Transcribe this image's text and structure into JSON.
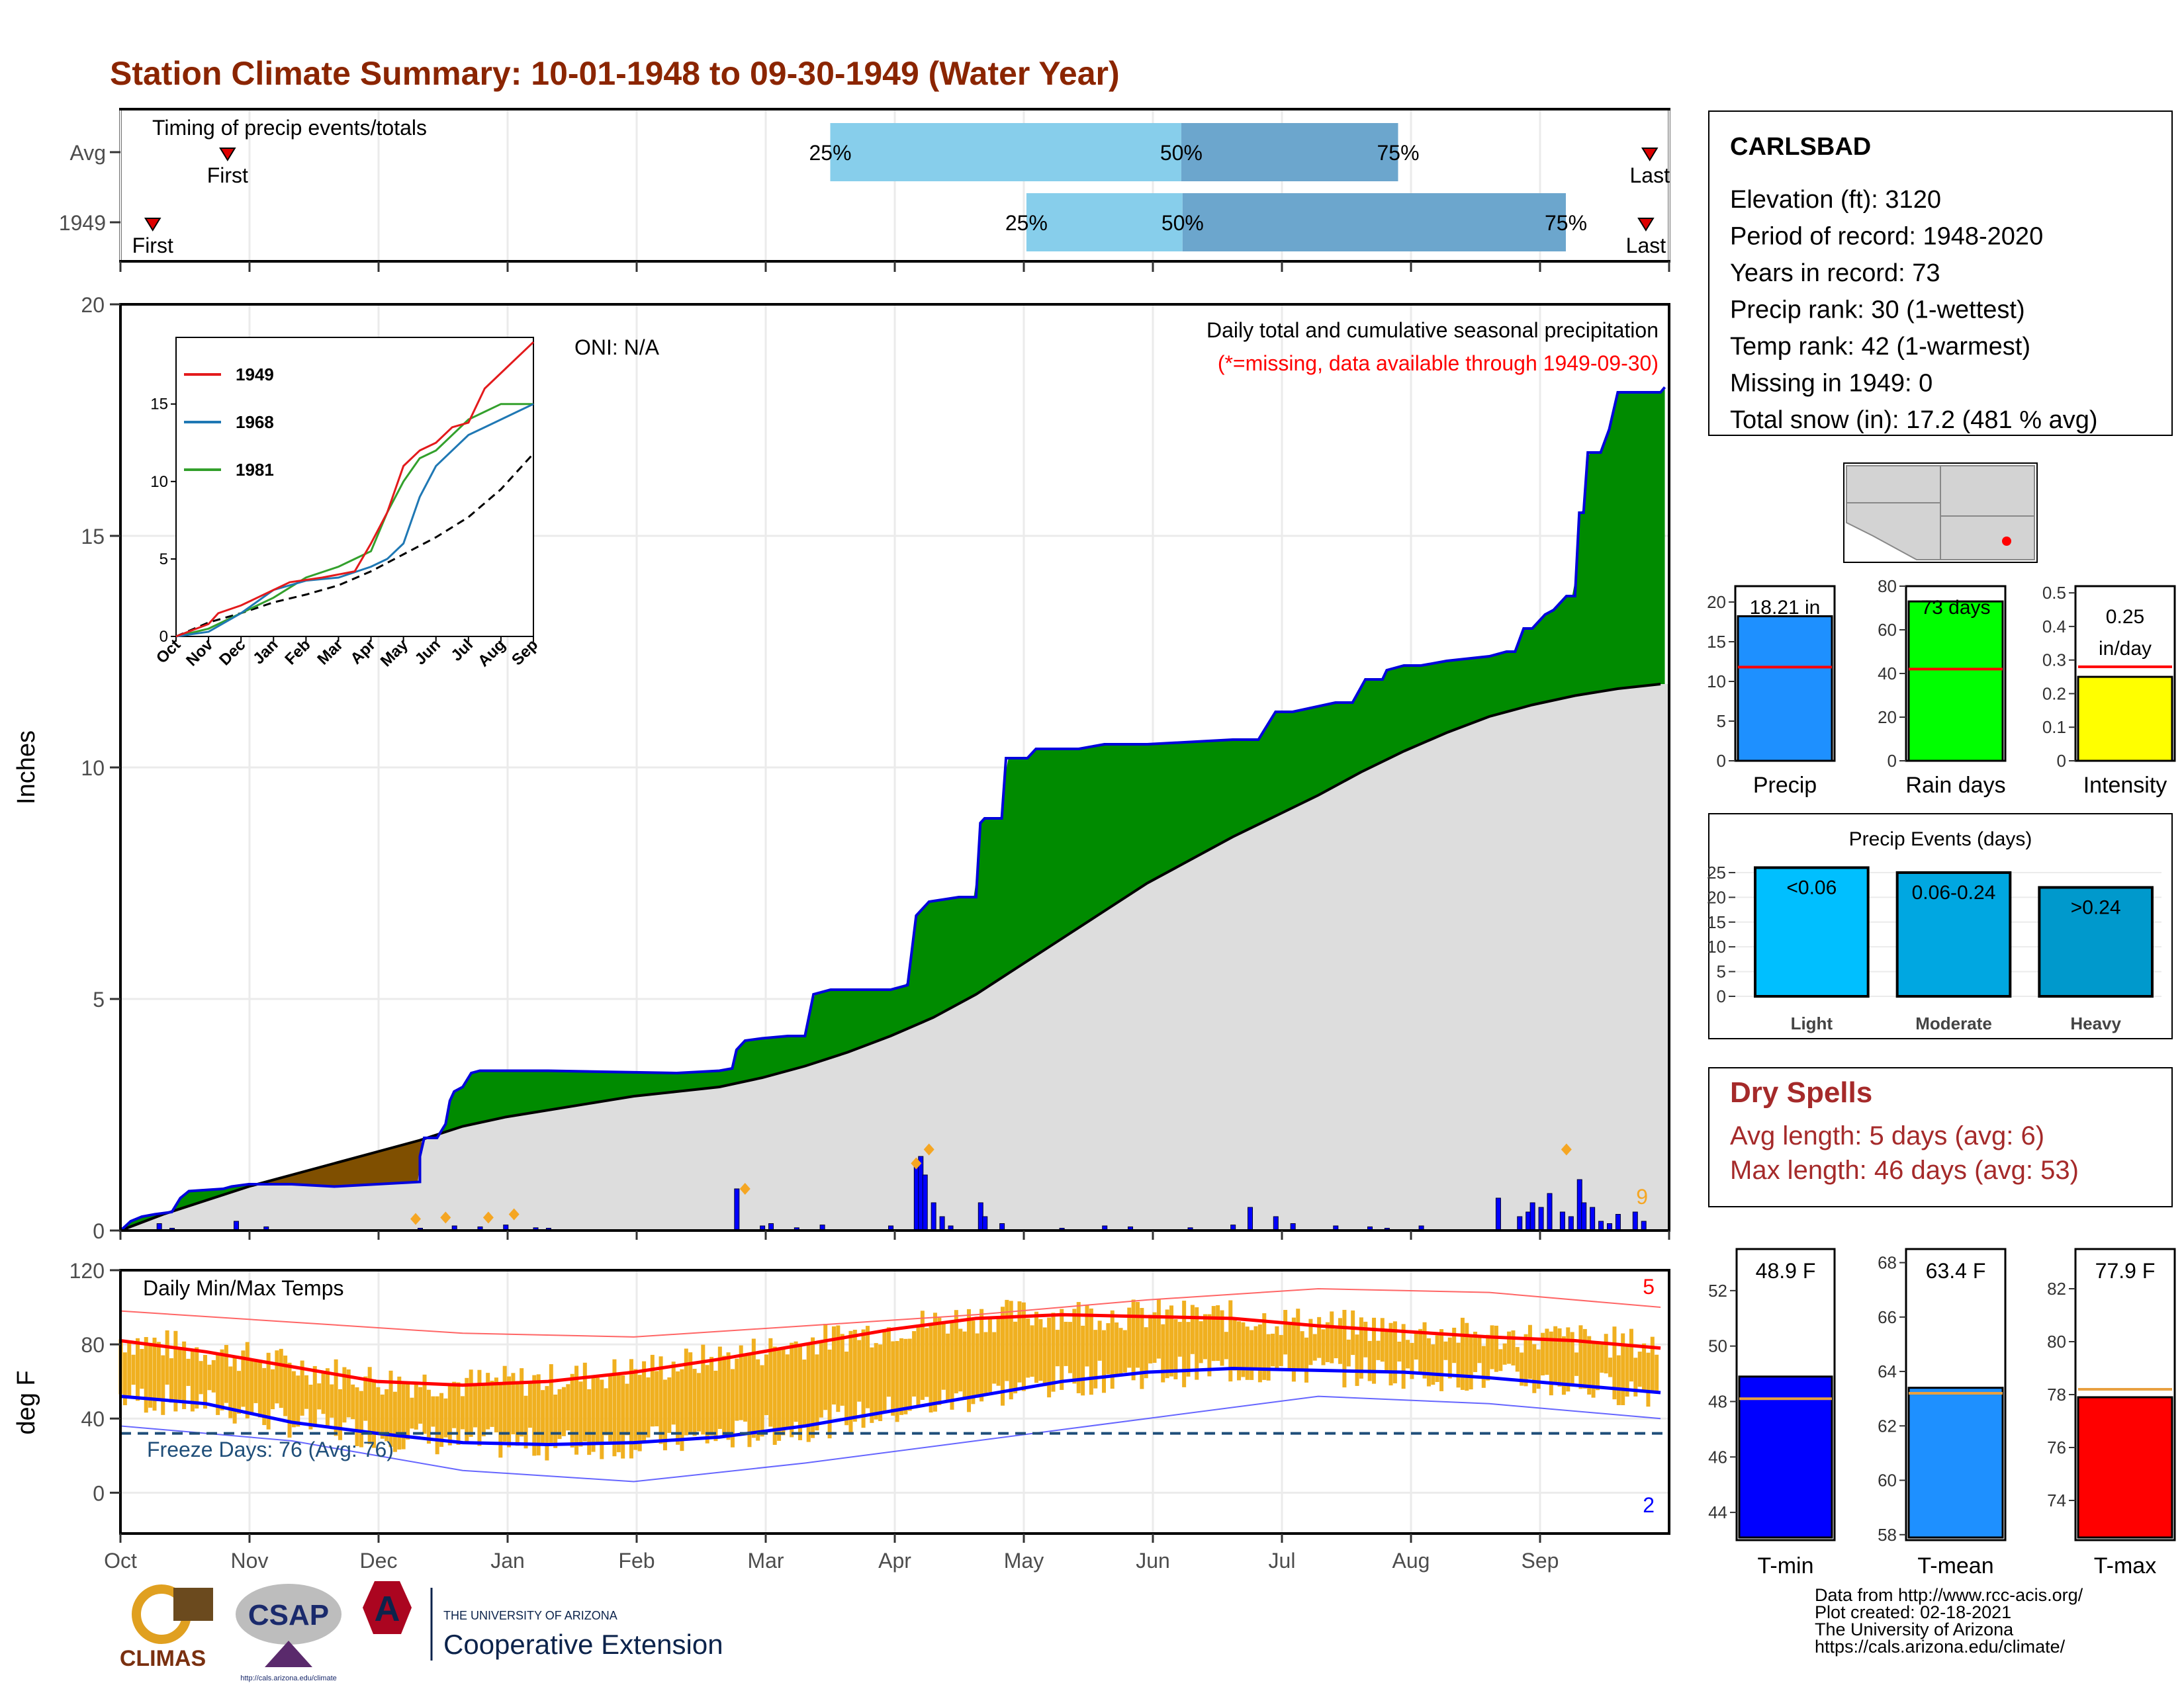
{
  "title": "Station Climate Summary: 10-01-1948 to 09-30-1949 (Water Year)",
  "colors": {
    "title": "#8b2500",
    "dry_title": "#a52a2a",
    "brown": "#7f4f00",
    "green": "#008b00",
    "cum_gray": "#dddddd",
    "blue_line": "#0000dd",
    "orange": "#f5a623",
    "tmin": "#0000ff",
    "tmean": "#1e90ff",
    "tmax": "#ff0000",
    "light_blue": "#87ceeb",
    "mid_blue": "#6ca6cd"
  },
  "timing": {
    "label": "Timing of precip events/totals",
    "rows": [
      {
        "label": "Avg",
        "first_month": 0.83,
        "last_month": 11.85,
        "p25": 5.5,
        "p50": 8.22,
        "p75": 9.9
      },
      {
        "label": "1949",
        "first_month": 0.25,
        "last_month": 11.82,
        "p25": 7.02,
        "p50": 8.23,
        "p75": 11.2
      }
    ],
    "first_label": "First",
    "last_label": "Last",
    "p25_label": "25%",
    "p50_label": "50%",
    "p75_label": "75%"
  },
  "precip_main": {
    "ylabel": "Inches",
    "yticks": [
      0,
      5,
      10,
      15,
      20
    ],
    "annotation_title": "Daily total and cumulative seasonal precipitation",
    "annotation_missing": "(*=missing, data available through 1949-09-30)",
    "oni": "ONI: N/A",
    "corner_count": "9",
    "cumulative_1949": [
      [
        0,
        0
      ],
      [
        0.05,
        0.08
      ],
      [
        0.12,
        0.2
      ],
      [
        0.25,
        0.3
      ],
      [
        0.4,
        0.35
      ],
      [
        0.6,
        0.4
      ],
      [
        0.7,
        0.7
      ],
      [
        0.8,
        0.85
      ],
      [
        1.2,
        0.9
      ],
      [
        1.3,
        0.95
      ],
      [
        1.5,
        1.0
      ],
      [
        2.0,
        1.0
      ],
      [
        2.5,
        0.95
      ],
      [
        3.0,
        1.0
      ],
      [
        3.5,
        1.05
      ],
      [
        3.5,
        1.6
      ],
      [
        3.55,
        2.0
      ],
      [
        3.7,
        2.0
      ],
      [
        3.8,
        2.3
      ],
      [
        3.85,
        2.8
      ],
      [
        3.9,
        3.0
      ],
      [
        4.0,
        3.1
      ],
      [
        4.1,
        3.4
      ],
      [
        4.2,
        3.45
      ],
      [
        5.0,
        3.45
      ],
      [
        6.5,
        3.4
      ],
      [
        7.0,
        3.45
      ],
      [
        7.15,
        3.5
      ],
      [
        7.2,
        3.9
      ],
      [
        7.3,
        4.1
      ],
      [
        7.5,
        4.15
      ],
      [
        7.8,
        4.2
      ],
      [
        8.0,
        4.2
      ],
      [
        8.1,
        5.1
      ],
      [
        8.3,
        5.2
      ],
      [
        9.0,
        5.2
      ],
      [
        9.2,
        5.3
      ],
      [
        9.3,
        6.8
      ],
      [
        9.4,
        7.0
      ],
      [
        9.45,
        7.1
      ],
      [
        9.8,
        7.2
      ],
      [
        10.0,
        7.2
      ],
      [
        10.05,
        8.8
      ],
      [
        10.1,
        8.9
      ],
      [
        10.3,
        8.9
      ],
      [
        10.35,
        10.2
      ],
      [
        10.6,
        10.2
      ],
      [
        10.7,
        10.4
      ],
      [
        11.2,
        10.4
      ],
      [
        11.5,
        10.5
      ],
      [
        12.0,
        10.5
      ],
      [
        13.0,
        10.6
      ],
      [
        13.3,
        10.6
      ],
      [
        13.5,
        11.2
      ],
      [
        13.7,
        11.2
      ],
      [
        14.2,
        11.4
      ],
      [
        14.4,
        11.4
      ],
      [
        14.55,
        11.9
      ],
      [
        14.75,
        11.9
      ],
      [
        14.8,
        12.1
      ],
      [
        15.0,
        12.2
      ],
      [
        15.2,
        12.2
      ],
      [
        15.5,
        12.3
      ],
      [
        16.0,
        12.4
      ],
      [
        16.2,
        12.5
      ],
      [
        16.3,
        12.5
      ],
      [
        16.4,
        13.0
      ],
      [
        16.5,
        13.0
      ],
      [
        16.65,
        13.3
      ],
      [
        16.75,
        13.4
      ],
      [
        16.9,
        13.7
      ],
      [
        17.0,
        13.7
      ],
      [
        17.05,
        15.5
      ],
      [
        17.1,
        15.5
      ],
      [
        17.15,
        16.8
      ],
      [
        17.3,
        16.8
      ],
      [
        17.4,
        17.3
      ],
      [
        17.5,
        18.1
      ],
      [
        18.0,
        18.1
      ],
      [
        18.05,
        18.21
      ]
    ],
    "cumulative_avg_note": "average cumulative curve",
    "cumulative_avg": [
      [
        0,
        0
      ],
      [
        0.5,
        0.35
      ],
      [
        1.0,
        0.65
      ],
      [
        1.5,
        0.95
      ],
      [
        2.0,
        1.2
      ],
      [
        2.5,
        1.45
      ],
      [
        3.0,
        1.7
      ],
      [
        3.5,
        1.95
      ],
      [
        4.0,
        2.25
      ],
      [
        4.5,
        2.45
      ],
      [
        5.0,
        2.6
      ],
      [
        5.5,
        2.75
      ],
      [
        6.0,
        2.9
      ],
      [
        6.5,
        3.0
      ],
      [
        7.0,
        3.1
      ],
      [
        7.5,
        3.3
      ],
      [
        8.0,
        3.55
      ],
      [
        8.5,
        3.85
      ],
      [
        9.0,
        4.2
      ],
      [
        9.5,
        4.6
      ],
      [
        10.0,
        5.1
      ],
      [
        10.5,
        5.7
      ],
      [
        11.0,
        6.3
      ],
      [
        11.5,
        6.9
      ],
      [
        12.0,
        7.5
      ],
      [
        12.5,
        8.0
      ],
      [
        13.0,
        8.5
      ],
      [
        13.5,
        8.95
      ],
      [
        14.0,
        9.4
      ],
      [
        14.5,
        9.9
      ],
      [
        15.0,
        10.35
      ],
      [
        15.5,
        10.75
      ],
      [
        16.0,
        11.1
      ],
      [
        16.5,
        11.35
      ],
      [
        17.0,
        11.55
      ],
      [
        17.5,
        11.7
      ],
      [
        18.0,
        11.8
      ]
    ],
    "daily_bars": [
      [
        0.45,
        0.15
      ],
      [
        0.6,
        0.05
      ],
      [
        1.35,
        0.2
      ],
      [
        1.7,
        0.08
      ],
      [
        3.5,
        0.05
      ],
      [
        3.9,
        0.1
      ],
      [
        4.2,
        0.08
      ],
      [
        4.5,
        0.12
      ],
      [
        4.85,
        0.06
      ],
      [
        5.0,
        0.05
      ],
      [
        7.2,
        0.9
      ],
      [
        7.5,
        0.1
      ],
      [
        7.6,
        0.15
      ],
      [
        7.9,
        0.06
      ],
      [
        8.2,
        0.12
      ],
      [
        9.0,
        0.1
      ],
      [
        9.3,
        1.45
      ],
      [
        9.35,
        1.6
      ],
      [
        9.4,
        1.2
      ],
      [
        9.5,
        0.6
      ],
      [
        9.6,
        0.3
      ],
      [
        9.7,
        0.1
      ],
      [
        10.05,
        0.6
      ],
      [
        10.1,
        0.3
      ],
      [
        10.3,
        0.15
      ],
      [
        11.0,
        0.05
      ],
      [
        11.5,
        0.1
      ],
      [
        11.8,
        0.08
      ],
      [
        12.5,
        0.06
      ],
      [
        13.0,
        0.12
      ],
      [
        13.2,
        0.5
      ],
      [
        13.5,
        0.3
      ],
      [
        13.7,
        0.15
      ],
      [
        14.2,
        0.1
      ],
      [
        14.6,
        0.08
      ],
      [
        14.8,
        0.05
      ],
      [
        15.2,
        0.1
      ],
      [
        16.1,
        0.7
      ],
      [
        16.35,
        0.3
      ],
      [
        16.45,
        0.4
      ],
      [
        16.5,
        0.6
      ],
      [
        16.6,
        0.5
      ],
      [
        16.7,
        0.8
      ],
      [
        16.85,
        0.4
      ],
      [
        16.95,
        0.3
      ],
      [
        17.05,
        1.1
      ],
      [
        17.1,
        0.6
      ],
      [
        17.2,
        0.5
      ],
      [
        17.3,
        0.2
      ],
      [
        17.4,
        0.15
      ],
      [
        17.5,
        0.35
      ],
      [
        17.7,
        0.4
      ],
      [
        17.8,
        0.2
      ]
    ],
    "orange_markers": [
      [
        3.45,
        0.25
      ],
      [
        3.8,
        0.28
      ],
      [
        4.3,
        0.28
      ],
      [
        4.6,
        0.35
      ],
      [
        7.3,
        0.9
      ],
      [
        9.3,
        1.45
      ],
      [
        9.45,
        1.75
      ],
      [
        16.9,
        1.75
      ]
    ],
    "month_ticks": [
      "Oct",
      "Nov",
      "Dec",
      "Jan",
      "Feb",
      "Mar",
      "Apr",
      "May",
      "Jun",
      "Jul",
      "Aug",
      "Sep"
    ]
  },
  "inset": {
    "legend": [
      "1949",
      "1968",
      "1981"
    ],
    "yticks": [
      0,
      5,
      10,
      15
    ],
    "months": [
      "Oct",
      "Nov",
      "Dec",
      "Jan",
      "Feb",
      "Mar",
      "Apr",
      "May",
      "Jun",
      "Jul",
      "Aug",
      "Sep"
    ],
    "series_1949": [
      [
        0,
        0
      ],
      [
        1,
        0.8
      ],
      [
        1.3,
        1.5
      ],
      [
        2,
        2
      ],
      [
        3,
        3
      ],
      [
        3.5,
        3.5
      ],
      [
        4.5,
        3.8
      ],
      [
        5.5,
        4.2
      ],
      [
        6,
        6
      ],
      [
        6.5,
        8
      ],
      [
        7,
        11
      ],
      [
        7.5,
        12
      ],
      [
        8,
        12.5
      ],
      [
        8.5,
        13.5
      ],
      [
        9,
        13.8
      ],
      [
        9.5,
        16
      ],
      [
        10,
        17
      ],
      [
        10.5,
        18
      ],
      [
        11,
        19
      ]
    ],
    "series_1968": [
      [
        0,
        0
      ],
      [
        1,
        0.3
      ],
      [
        2,
        1.5
      ],
      [
        3,
        3
      ],
      [
        4,
        3.6
      ],
      [
        5,
        3.8
      ],
      [
        6,
        4.5
      ],
      [
        6.5,
        5
      ],
      [
        7,
        6
      ],
      [
        7.5,
        9
      ],
      [
        8,
        11
      ],
      [
        8.5,
        12
      ],
      [
        9,
        13
      ],
      [
        9.5,
        13.5
      ],
      [
        10,
        14
      ],
      [
        10.5,
        14.5
      ],
      [
        11,
        15
      ]
    ],
    "series_1981": [
      [
        0,
        0
      ],
      [
        1,
        0.5
      ],
      [
        2,
        1.5
      ],
      [
        3,
        2.5
      ],
      [
        4,
        3.8
      ],
      [
        5,
        4.5
      ],
      [
        5.5,
        5
      ],
      [
        6,
        5.5
      ],
      [
        6.5,
        8
      ],
      [
        7,
        10
      ],
      [
        7.5,
        11.5
      ],
      [
        8,
        12
      ],
      [
        8.5,
        13
      ],
      [
        9,
        14
      ],
      [
        9.5,
        14.5
      ],
      [
        10,
        15
      ],
      [
        10.5,
        15
      ],
      [
        11,
        15
      ]
    ],
    "series_avg": [
      [
        0,
        0
      ],
      [
        1,
        0.9
      ],
      [
        2,
        1.5
      ],
      [
        3,
        2.2
      ],
      [
        4,
        2.7
      ],
      [
        5,
        3.3
      ],
      [
        6,
        4.2
      ],
      [
        7,
        5.3
      ],
      [
        8,
        6.4
      ],
      [
        9,
        7.7
      ],
      [
        10,
        9.5
      ],
      [
        11,
        11.8
      ]
    ]
  },
  "temps": {
    "ylabel": "deg F",
    "label": "Daily Min/Max Temps",
    "yticks": [
      0,
      40,
      80,
      120
    ],
    "freeze_label": "Freeze Days: 76 (Avg: 76)",
    "freeze_temp": 32,
    "high_count": "5",
    "low_count": "2",
    "avg_max": [
      [
        0,
        82
      ],
      [
        1,
        76
      ],
      [
        2,
        68
      ],
      [
        3,
        60
      ],
      [
        4,
        58
      ],
      [
        5,
        60
      ],
      [
        6,
        65
      ],
      [
        7,
        72
      ],
      [
        8,
        80
      ],
      [
        9,
        88
      ],
      [
        10,
        94
      ],
      [
        11,
        96
      ],
      [
        12,
        95
      ],
      [
        13,
        94
      ],
      [
        14,
        90
      ],
      [
        15,
        87
      ],
      [
        16,
        84
      ],
      [
        17,
        82
      ],
      [
        18,
        78
      ]
    ],
    "avg_min": [
      [
        0,
        52
      ],
      [
        1,
        48
      ],
      [
        2,
        38
      ],
      [
        3,
        32
      ],
      [
        4,
        27
      ],
      [
        5,
        26
      ],
      [
        6,
        27
      ],
      [
        7,
        30
      ],
      [
        8,
        36
      ],
      [
        9,
        44
      ],
      [
        10,
        52
      ],
      [
        11,
        60
      ],
      [
        12,
        65
      ],
      [
        13,
        67
      ],
      [
        14,
        66
      ],
      [
        15,
        65
      ],
      [
        16,
        62
      ],
      [
        17,
        58
      ],
      [
        18,
        54
      ]
    ],
    "rec_max": [
      [
        0,
        98
      ],
      [
        2,
        92
      ],
      [
        4,
        86
      ],
      [
        6,
        84
      ],
      [
        8,
        90
      ],
      [
        10,
        96
      ],
      [
        12,
        104
      ],
      [
        14,
        110
      ],
      [
        16,
        108
      ],
      [
        18,
        100
      ]
    ],
    "rec_min": [
      [
        0,
        36
      ],
      [
        2,
        28
      ],
      [
        4,
        12
      ],
      [
        6,
        6
      ],
      [
        8,
        16
      ],
      [
        10,
        28
      ],
      [
        12,
        40
      ],
      [
        14,
        52
      ],
      [
        16,
        48
      ],
      [
        18,
        40
      ]
    ],
    "month_ticks": [
      "Oct",
      "Nov",
      "Dec",
      "Jan",
      "Feb",
      "Mar",
      "Apr",
      "May",
      "Jun",
      "Jul",
      "Aug",
      "Sep"
    ]
  },
  "station": {
    "name": "CARLSBAD",
    "lines": [
      "Elevation (ft): 3120",
      "Period of record: 1948-2020",
      "Years in record: 73",
      "Precip rank: 30 (1-wettest)",
      "Temp rank: 42 (1-warmest)",
      "Missing in 1949: 0",
      "Total snow (in): 17.2 (481 % avg)"
    ]
  },
  "summary_bars": [
    {
      "label": "Precip",
      "value_label": "18.21 in",
      "value": 18.21,
      "avg": 11.8,
      "ymax": 22,
      "yticks": [
        0,
        5,
        10,
        15,
        20
      ],
      "color": "#1e90ff"
    },
    {
      "label": "Rain days",
      "value_label": "73 days",
      "value": 73,
      "avg": 42,
      "ymax": 80,
      "yticks": [
        0,
        20,
        40,
        60,
        80
      ],
      "color": "#00ff00"
    },
    {
      "label": "Intensity",
      "value_label": "0.25 in/day",
      "value": 0.25,
      "avg": 0.28,
      "ymax": 0.52,
      "yticks": [
        0.0,
        0.1,
        0.2,
        0.3,
        0.4,
        0.5
      ],
      "color": "#ffff00"
    }
  ],
  "intensity_value_line1": "0.25",
  "intensity_value_line2": "in/day",
  "events": {
    "title": "Precip Events (days)",
    "yticks": [
      0,
      5,
      10,
      15,
      20,
      25
    ],
    "bars": [
      {
        "label": "Light",
        "range": "<0.06",
        "value": 26,
        "color": "#00bfff"
      },
      {
        "label": "Moderate",
        "range": "0.06-0.24",
        "value": 25,
        "color": "#00a7e1"
      },
      {
        "label": "Heavy",
        "range": ">0.24",
        "value": 22,
        "color": "#0099cc"
      }
    ]
  },
  "dry_spells": {
    "title": "Dry Spells",
    "avg": "Avg length: 5 days (avg: 6)",
    "max": "Max length: 46 days (avg: 53)"
  },
  "temp_bars": [
    {
      "label": "T-min",
      "value_label": "48.9 F",
      "value": 48.9,
      "avg": 48.1,
      "ymin": 43,
      "ymax": 53.5,
      "yticks": [
        44,
        46,
        48,
        50,
        52
      ],
      "color": "#0000ff"
    },
    {
      "label": "T-mean",
      "value_label": "63.4 F",
      "value": 63.4,
      "avg": 63.2,
      "ymin": 57.8,
      "ymax": 68.5,
      "yticks": [
        58,
        60,
        62,
        64,
        66,
        68
      ],
      "color": "#1e90ff"
    },
    {
      "label": "T-max",
      "value_label": "77.9 F",
      "value": 77.9,
      "avg": 78.2,
      "ymin": 72.5,
      "ymax": 83.5,
      "yticks": [
        74,
        76,
        78,
        80,
        82
      ],
      "color": "#ff0000"
    }
  ],
  "footer": {
    "lines": [
      "Data from http://www.rcc-acis.org/",
      "Plot created: 02-18-2021",
      "The University of Arizona",
      "https://cals.arizona.edu/climate/"
    ],
    "climas": "CLIMAS",
    "csap": "CSAP",
    "csap_url": "http://cals.arizona.edu/climate",
    "ua_top": "THE UNIVERSITY OF ARIZONA",
    "ua_bottom": "Cooperative Extension"
  }
}
